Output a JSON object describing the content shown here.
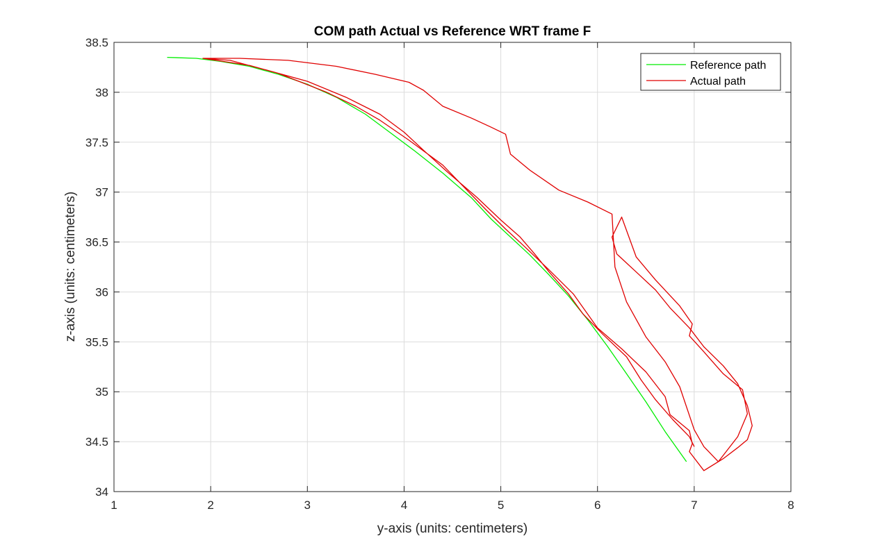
{
  "chart_data": {
    "type": "line",
    "title": "COM path Actual vs Reference WRT frame F",
    "xlabel": "y-axis (units: centimeters)",
    "ylabel": "z-axis (units: centimeters)",
    "xlim": [
      1,
      8
    ],
    "ylim": [
      34,
      38.5
    ],
    "xticks": [
      1,
      2,
      3,
      4,
      5,
      6,
      7,
      8
    ],
    "yticks": [
      34,
      34.5,
      35,
      35.5,
      36,
      36.5,
      37,
      37.5,
      38,
      38.5
    ],
    "xtick_labels": [
      "1",
      "2",
      "3",
      "4",
      "5",
      "6",
      "7",
      "8"
    ],
    "ytick_labels": [
      "34",
      "34.5",
      "35",
      "35.5",
      "36",
      "36.5",
      "37",
      "37.5",
      "38",
      "38.5"
    ],
    "grid": true,
    "legend_position": "top-right",
    "series": [
      {
        "name": "Reference path",
        "color": "#00ee00",
        "x": [
          1.55,
          1.85,
          2.1,
          2.4,
          2.7,
          3.0,
          3.3,
          3.6,
          3.85,
          4.1,
          4.4,
          4.7,
          4.9,
          5.1,
          5.3,
          5.5,
          5.7,
          5.9,
          6.1,
          6.3,
          6.5,
          6.7,
          6.92
        ],
        "y": [
          38.35,
          38.34,
          38.31,
          38.26,
          38.18,
          38.08,
          37.95,
          37.78,
          37.6,
          37.42,
          37.19,
          36.94,
          36.73,
          36.55,
          36.37,
          36.17,
          35.96,
          35.72,
          35.46,
          35.18,
          34.9,
          34.6,
          34.3
        ]
      },
      {
        "name": "Actual path",
        "color": "#e00000",
        "x": [
          1.92,
          2.2,
          2.7,
          3.2,
          3.5,
          3.75,
          4.05,
          4.4,
          4.7,
          4.85,
          5.05,
          5.25,
          5.5,
          5.75,
          6.0,
          6.25,
          6.5,
          6.7,
          6.75,
          6.95,
          6.98,
          6.95,
          7.1,
          7.3,
          7.45,
          7.55,
          7.6,
          7.55,
          7.45,
          7.3,
          7.1,
          6.95,
          6.75,
          6.6,
          6.4,
          6.2,
          6.15,
          6.25,
          6.4,
          6.6,
          6.85,
          6.98,
          6.95,
          7.1,
          7.3,
          7.5,
          7.55,
          7.45,
          7.25,
          7.1,
          7.0,
          6.85,
          6.7,
          6.5,
          6.3,
          6.18,
          6.15,
          5.9,
          5.6,
          5.3,
          5.1,
          5.05,
          4.9,
          4.7,
          4.4,
          4.2,
          4.05,
          3.7,
          3.3,
          2.8,
          2.3,
          1.92,
          2.4,
          3.0,
          3.4,
          3.75,
          4.0,
          4.2,
          4.45,
          4.75,
          5.0,
          5.2,
          5.35,
          5.5,
          5.7,
          5.85,
          6.05,
          6.3,
          6.45,
          6.6,
          6.78,
          6.95,
          7.0
        ],
        "y": [
          38.34,
          38.32,
          38.19,
          38.0,
          37.86,
          37.72,
          37.52,
          37.27,
          36.97,
          36.82,
          36.63,
          36.45,
          36.22,
          35.98,
          35.64,
          35.43,
          35.2,
          34.95,
          34.77,
          34.61,
          34.48,
          34.4,
          34.21,
          34.33,
          34.44,
          34.52,
          34.66,
          34.86,
          35.08,
          35.26,
          35.45,
          35.64,
          35.84,
          36.02,
          36.2,
          36.38,
          36.55,
          36.75,
          36.35,
          36.12,
          35.86,
          35.68,
          35.56,
          35.4,
          35.18,
          35.02,
          34.78,
          34.55,
          34.3,
          34.45,
          34.62,
          35.05,
          35.3,
          35.55,
          35.9,
          36.25,
          36.78,
          36.9,
          37.02,
          37.22,
          37.38,
          37.58,
          37.65,
          37.74,
          37.86,
          38.02,
          38.1,
          38.18,
          38.26,
          38.32,
          38.34,
          38.34,
          38.27,
          38.11,
          37.95,
          37.78,
          37.6,
          37.42,
          37.2,
          36.95,
          36.72,
          36.55,
          36.38,
          36.2,
          35.98,
          35.78,
          35.58,
          35.35,
          35.12,
          34.92,
          34.72,
          34.55,
          34.45
        ]
      }
    ]
  }
}
